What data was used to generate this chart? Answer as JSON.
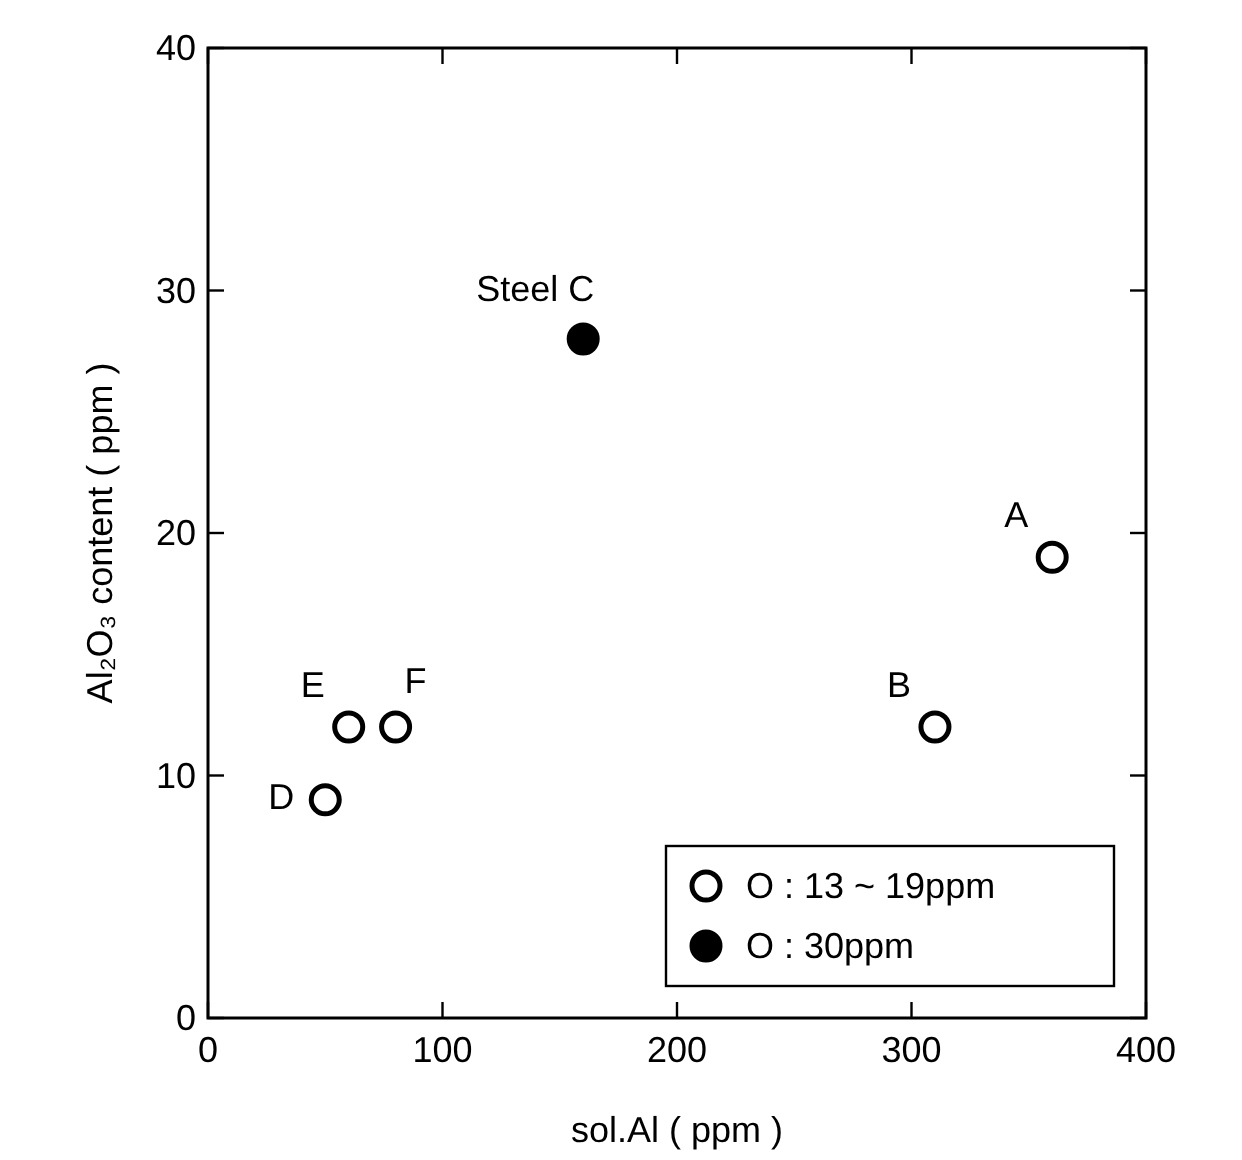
{
  "chart_data": {
    "type": "scatter",
    "xlabel": "sol.Al ( ppm )",
    "ylabel": "Al₂O₃ content ( ppm )",
    "xlim": [
      0,
      400
    ],
    "xticks": [
      0,
      100,
      200,
      300,
      400
    ],
    "ylim": [
      0,
      40
    ],
    "yticks": [
      0,
      10,
      20,
      30,
      40
    ],
    "grid": false,
    "legend": "bottom right",
    "marker": "circle",
    "series": [
      {
        "name": "O : 13 ~ 19ppm",
        "color": "#ffffff",
        "x": [
          360,
          310,
          50,
          60,
          80
        ],
        "values": [
          19,
          12,
          9,
          12,
          12
        ]
      },
      {
        "name": "O : 30ppm",
        "color": "#000000",
        "x": [
          160
        ],
        "values": [
          28
        ]
      }
    ],
    "annotations": [
      {
        "text": "A",
        "x": 360,
        "y": 19
      },
      {
        "text": "B",
        "x": 310,
        "y": 12
      },
      {
        "text": "Steel C",
        "x": 160,
        "y": 28
      },
      {
        "text": "D",
        "x": 50,
        "y": 9
      },
      {
        "text": "E",
        "x": 60,
        "y": 12
      },
      {
        "text": "F",
        "x": 80,
        "y": 12
      }
    ]
  }
}
